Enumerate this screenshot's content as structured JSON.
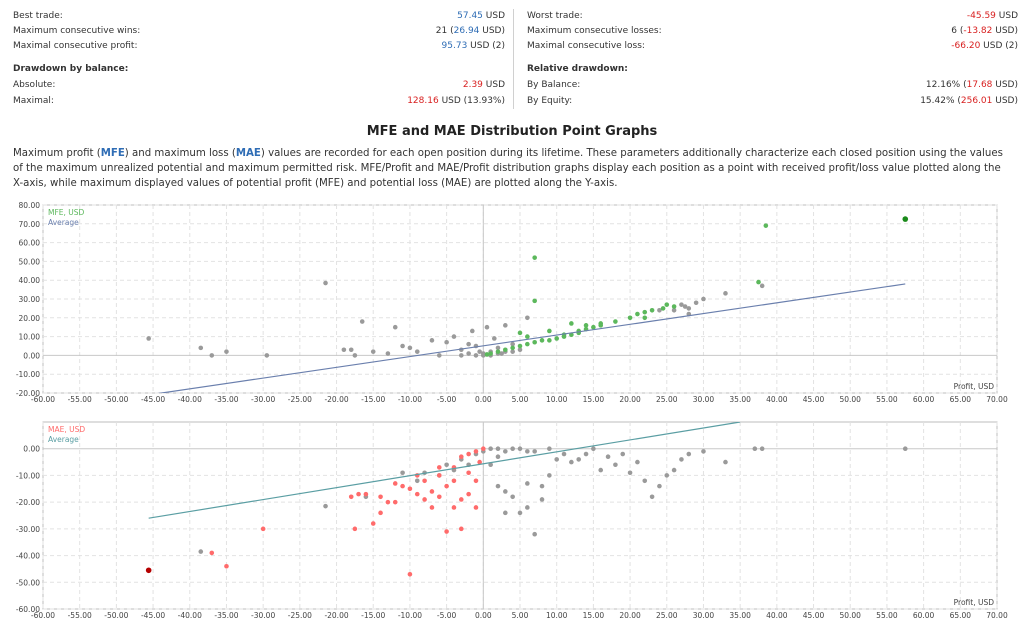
{
  "stats": {
    "left": [
      {
        "label": "Best trade:",
        "value": "57.45",
        "value_class": "num",
        "tail": " USD"
      },
      {
        "label": "Maximum consecutive wins:",
        "pre": "21 (",
        "value": "26.94",
        "value_class": "num",
        "tail": " USD)"
      },
      {
        "label": "Maximal consecutive profit:",
        "value": "95.73",
        "value_class": "num",
        "tail": " USD (2)"
      }
    ],
    "left_head": "Drawdown by balance:",
    "left2": [
      {
        "label": "Absolute:",
        "value": "2.39",
        "value_class": "neg",
        "tail": " USD"
      },
      {
        "label": "Maximal:",
        "value": "128.16",
        "value_class": "neg",
        "tail": " USD (13.93%)"
      }
    ],
    "right": [
      {
        "label": "Worst trade:",
        "value": "-45.59",
        "value_class": "neg",
        "tail": " USD"
      },
      {
        "label": "Maximum consecutive losses:",
        "pre": "6 (",
        "value": "-13.82",
        "value_class": "neg",
        "tail": " USD)"
      },
      {
        "label": "Maximal consecutive loss:",
        "value": "-66.20",
        "value_class": "neg",
        "tail": " USD (2)"
      }
    ],
    "right_head": "Relative drawdown:",
    "right2": [
      {
        "label": "By Balance:",
        "pre": "12.16% (",
        "value": "17.68",
        "value_class": "neg",
        "tail": " USD)"
      },
      {
        "label": "By Equity:",
        "pre": "15.42% (",
        "value": "256.01",
        "value_class": "neg",
        "tail": " USD)"
      }
    ]
  },
  "section_title": "MFE and MAE Distribution Point Graphs",
  "description": {
    "p1": "Maximum profit (",
    "mfe": "MFE",
    "p2": ") and maximum loss (",
    "mae": "MAE",
    "p3": ") values are recorded for each open position during its lifetime. These parameters additionally characterize each closed position using the values of the maximum unrealized potential and maximum permitted risk. MFE/Profit and MAE/Profit distribution graphs display each position as a point with received profit/loss value plotted along the X-axis, while maximum displayed values of potential profit (MFE) and potential loss (MAE) are plotted along the Y-axis."
  },
  "colors": {
    "mfe": "#5cb85c",
    "mfe_best": "#1a8a1a",
    "mae": "#ff6b6b",
    "mae_worst": "#b50000",
    "gray": "#9a9a9a",
    "avg_mfe": "#6a7fad",
    "avg_mae": "#5a9ea3"
  },
  "chart_data": [
    {
      "type": "scatter",
      "xlabel": "Profit, USD",
      "legend": [
        "MFE, USD",
        "Average"
      ],
      "xlim": [
        -60,
        70
      ],
      "ylim": [
        -20,
        80
      ],
      "xticks": [
        -60,
        -55,
        -50,
        -45,
        -40,
        -35,
        -30,
        -25,
        -20,
        -15,
        -10,
        -5,
        0,
        5,
        10,
        15,
        20,
        25,
        30,
        35,
        40,
        45,
        50,
        55,
        60,
        65,
        70
      ],
      "yticks": [
        -20,
        -10,
        0,
        10,
        20,
        30,
        40,
        50,
        60,
        70,
        80
      ],
      "average_line": [
        [
          -45.6,
          -21
        ],
        [
          57.5,
          38
        ]
      ],
      "best": [
        57.5,
        72.5
      ],
      "colored_points": [
        [
          38.5,
          69
        ],
        [
          37.5,
          39
        ],
        [
          7,
          52
        ],
        [
          7,
          29
        ],
        [
          25,
          27
        ],
        [
          24.5,
          25
        ],
        [
          22,
          23
        ],
        [
          23,
          24
        ],
        [
          21,
          22
        ],
        [
          20,
          20
        ],
        [
          18,
          18
        ],
        [
          16,
          16
        ],
        [
          15,
          15
        ],
        [
          14,
          14
        ],
        [
          13,
          12
        ],
        [
          12,
          11
        ],
        [
          11,
          10
        ],
        [
          10,
          9
        ],
        [
          9,
          8
        ],
        [
          8,
          8
        ],
        [
          7,
          7
        ],
        [
          6,
          6
        ],
        [
          5,
          5
        ],
        [
          4,
          4
        ],
        [
          3,
          3
        ],
        [
          2,
          2
        ],
        [
          1,
          1
        ],
        [
          0.5,
          0.5
        ],
        [
          6,
          10
        ],
        [
          5,
          12
        ],
        [
          9,
          13
        ],
        [
          12,
          17
        ],
        [
          16,
          17
        ],
        [
          11,
          11
        ],
        [
          13,
          13
        ],
        [
          14,
          16
        ],
        [
          22,
          20
        ],
        [
          26,
          26
        ]
      ],
      "gray_points": [
        [
          -45.6,
          9
        ],
        [
          -38.5,
          4
        ],
        [
          -37,
          0
        ],
        [
          -35,
          2
        ],
        [
          -29.5,
          0
        ],
        [
          -21.5,
          38.5
        ],
        [
          -16.5,
          18
        ],
        [
          -18,
          3
        ],
        [
          -19,
          3
        ],
        [
          -17.5,
          0
        ],
        [
          -15,
          2
        ],
        [
          -13,
          1
        ],
        [
          -12,
          15
        ],
        [
          -11,
          5
        ],
        [
          -10,
          4
        ],
        [
          -9,
          2
        ],
        [
          -7,
          8
        ],
        [
          -6,
          0
        ],
        [
          -5,
          7
        ],
        [
          -4,
          10
        ],
        [
          -3,
          3
        ],
        [
          -2,
          6
        ],
        [
          -1.5,
          13
        ],
        [
          -1,
          5
        ],
        [
          -0.5,
          2
        ],
        [
          0,
          0
        ],
        [
          0.5,
          15
        ],
        [
          1,
          2
        ],
        [
          1.5,
          9
        ],
        [
          2,
          4
        ],
        [
          2.5,
          1
        ],
        [
          3,
          16
        ],
        [
          4,
          6
        ],
        [
          5,
          3
        ],
        [
          6,
          20
        ],
        [
          33,
          33
        ],
        [
          38,
          37
        ],
        [
          27,
          27
        ],
        [
          28,
          25
        ],
        [
          29,
          28
        ],
        [
          30,
          30
        ],
        [
          28,
          22
        ],
        [
          26,
          24
        ],
        [
          24,
          24
        ],
        [
          27.5,
          26
        ],
        [
          -3,
          0
        ],
        [
          -2,
          1
        ],
        [
          -1,
          0
        ],
        [
          0,
          1
        ],
        [
          1,
          0
        ],
        [
          2,
          1
        ],
        [
          3,
          2
        ],
        [
          4,
          2
        ]
      ]
    },
    {
      "type": "scatter",
      "xlabel": "Profit, USD",
      "legend": [
        "MAE, USD",
        "Average"
      ],
      "xlim": [
        -60,
        70
      ],
      "ylim": [
        -60,
        10
      ],
      "xticks": [
        -60,
        -55,
        -50,
        -45,
        -40,
        -35,
        -30,
        -25,
        -20,
        -15,
        -10,
        -5,
        0,
        5,
        10,
        15,
        20,
        25,
        30,
        35,
        40,
        45,
        50,
        55,
        60,
        65,
        70
      ],
      "yticks": [
        -60,
        -50,
        -40,
        -30,
        -20,
        -10,
        0
      ],
      "average_line": [
        [
          -45.6,
          -26
        ],
        [
          35,
          10
        ]
      ],
      "worst": [
        -45.6,
        -45.5
      ],
      "colored_points": [
        [
          -37,
          -39
        ],
        [
          -35,
          -44
        ],
        [
          -30,
          -30
        ],
        [
          -18,
          -18
        ],
        [
          -17.5,
          -30
        ],
        [
          -17,
          -17
        ],
        [
          -16,
          -17
        ],
        [
          -15,
          -28
        ],
        [
          -14,
          -24
        ],
        [
          -13,
          -20
        ],
        [
          -12,
          -13
        ],
        [
          -11,
          -14
        ],
        [
          -10,
          -47
        ],
        [
          -10,
          -15
        ],
        [
          -9,
          -10
        ],
        [
          -8,
          -19
        ],
        [
          -7,
          -16
        ],
        [
          -6,
          -18
        ],
        [
          -5,
          -31
        ],
        [
          -4,
          -22
        ],
        [
          -3,
          -30
        ],
        [
          -2,
          -17
        ],
        [
          -1,
          -12
        ],
        [
          -0.5,
          -5
        ],
        [
          -6,
          -10
        ],
        [
          -4,
          -7
        ],
        [
          -3,
          -3
        ],
        [
          -2,
          -2
        ],
        [
          -1,
          -1
        ],
        [
          0,
          0
        ],
        [
          -9,
          -17
        ],
        [
          -7,
          -22
        ],
        [
          -5,
          -14
        ],
        [
          -3,
          -19
        ],
        [
          -1,
          -22
        ],
        [
          -2,
          -9
        ],
        [
          -4,
          -12
        ],
        [
          -8,
          -12
        ],
        [
          -6,
          -7
        ],
        [
          -12,
          -20
        ],
        [
          -14,
          -18
        ]
      ],
      "gray_points": [
        [
          -38.5,
          -38.5
        ],
        [
          -21.5,
          -21.5
        ],
        [
          -16,
          -18
        ],
        [
          -11,
          -9
        ],
        [
          -9,
          -12
        ],
        [
          -8,
          -9
        ],
        [
          -5,
          -6
        ],
        [
          -3,
          -4
        ],
        [
          -1,
          -2
        ],
        [
          0,
          -1
        ],
        [
          1,
          0
        ],
        [
          2,
          0
        ],
        [
          3,
          -1
        ],
        [
          4,
          0
        ],
        [
          5,
          0
        ],
        [
          6,
          -1
        ],
        [
          7,
          -32
        ],
        [
          5,
          -24
        ],
        [
          3,
          -24
        ],
        [
          2,
          -14
        ],
        [
          4,
          -18
        ],
        [
          6,
          -22
        ],
        [
          8,
          -14
        ],
        [
          9,
          -10
        ],
        [
          10,
          -4
        ],
        [
          12,
          -5
        ],
        [
          14,
          -2
        ],
        [
          15,
          0
        ],
        [
          17,
          -3
        ],
        [
          18,
          -6
        ],
        [
          20,
          -9
        ],
        [
          22,
          -12
        ],
        [
          24,
          -14
        ],
        [
          26,
          -8
        ],
        [
          27,
          -4
        ],
        [
          28,
          -2
        ],
        [
          30,
          -1
        ],
        [
          33,
          -5
        ],
        [
          37,
          0
        ],
        [
          38,
          0
        ],
        [
          57.5,
          0
        ],
        [
          23,
          -18
        ],
        [
          25,
          -10
        ],
        [
          21,
          -5
        ],
        [
          19,
          -2
        ],
        [
          16,
          -8
        ],
        [
          13,
          -4
        ],
        [
          11,
          -2
        ],
        [
          9,
          0
        ],
        [
          7,
          -1
        ],
        [
          6,
          -13
        ],
        [
          8,
          -19
        ],
        [
          1,
          -6
        ],
        [
          2,
          -3
        ],
        [
          3,
          -16
        ],
        [
          -2,
          -6
        ],
        [
          -4,
          -8
        ],
        [
          -6,
          -10
        ]
      ]
    }
  ]
}
